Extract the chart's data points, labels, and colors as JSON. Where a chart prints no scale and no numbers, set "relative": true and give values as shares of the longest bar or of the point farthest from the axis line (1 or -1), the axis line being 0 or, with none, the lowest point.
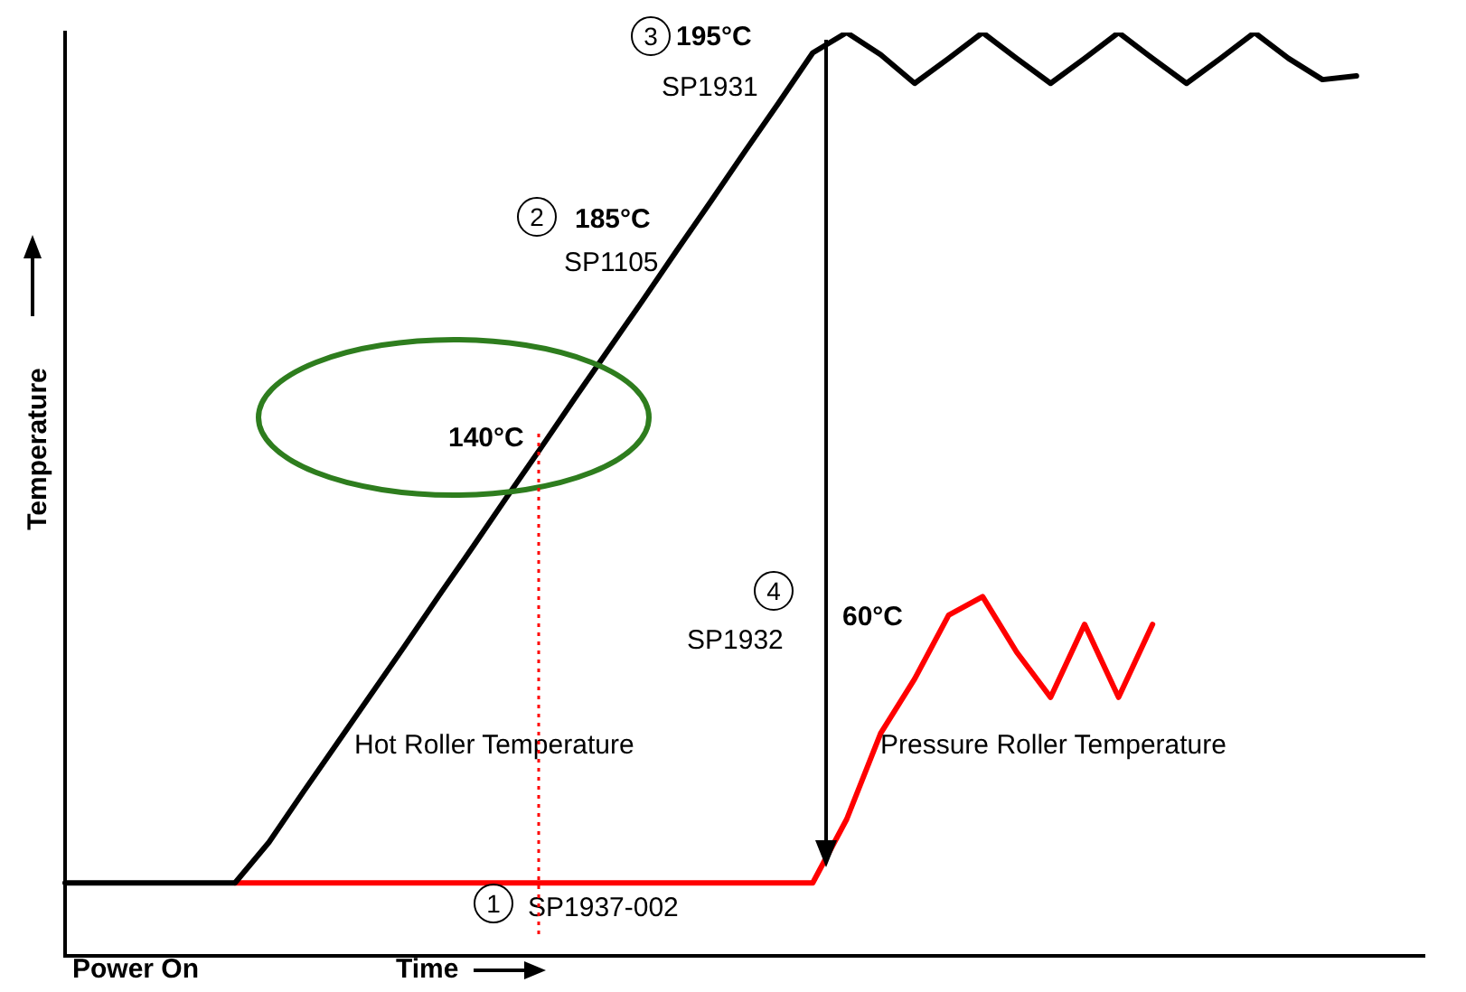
{
  "chart_data": {
    "type": "line",
    "relative": true,
    "ylabel": "Temperature",
    "xlabel": "Time",
    "legend": false,
    "grid": false,
    "marker": "none",
    "categories": [
      null,
      null,
      null,
      null,
      null,
      null,
      null,
      null,
      null,
      null,
      null,
      null,
      null,
      null,
      null,
      null,
      null,
      null,
      null,
      null,
      null,
      null,
      null,
      null,
      null,
      null,
      null,
      null,
      null,
      null,
      null,
      null,
      null,
      null,
      null,
      null,
      null,
      null,
      null,
      null,
      null
    ],
    "series": [
      {
        "name": "Hot Roller Temperature",
        "color": "#000000",
        "values": [
          0.079,
          0.079,
          0.079,
          0.079,
          0.079,
          0.079,
          0.123,
          0.177,
          0.23,
          0.283,
          0.336,
          0.39,
          0.443,
          0.497,
          0.55,
          0.604,
          0.657,
          0.71,
          0.764,
          0.817,
          0.871,
          0.924,
          0.978,
          1.0,
          0.976,
          0.945,
          0.972,
          1.0,
          0.972,
          0.945,
          0.972,
          1.0,
          0.972,
          0.945,
          0.972,
          1.0,
          0.972,
          0.949,
          0.953,
          null,
          null
        ]
      },
      {
        "name": "Pressure Roller Temperature",
        "color": "#ff0000",
        "values": [
          null,
          null,
          null,
          null,
          null,
          0.079,
          0.079,
          0.079,
          0.079,
          0.079,
          0.079,
          0.079,
          0.079,
          0.079,
          0.079,
          0.079,
          0.079,
          0.079,
          0.079,
          0.079,
          0.079,
          0.079,
          0.079,
          0.148,
          0.241,
          0.3,
          0.369,
          0.389,
          0.329,
          0.28,
          0.359,
          0.28,
          0.359,
          null,
          null,
          null,
          null,
          null,
          null,
          null,
          null
        ]
      }
    ],
    "annotations": [
      "3",
      "195°C",
      "SP1931",
      "2",
      "185°C",
      "SP1105",
      "140°C",
      "4",
      "60°C",
      "SP1932",
      "1",
      "SP1937-002",
      "Power On"
    ]
  }
}
